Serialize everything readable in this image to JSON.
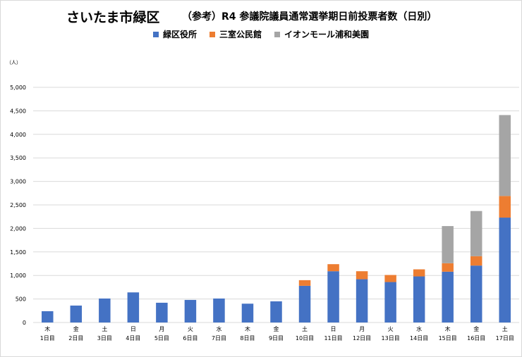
{
  "title": {
    "main": "さいたま市緑区",
    "sub": "（参考）R4 参議院議員通常選挙期日前投票者数（日別）"
  },
  "unit_label": "（人）",
  "colors": {
    "series1": "#4472c4",
    "series2": "#ed7d31",
    "series3": "#a5a5a5",
    "grid": "#d9d9d9"
  },
  "chart_data": {
    "type": "bar",
    "stacked": true,
    "title": "さいたま市緑区 （参考）R4 参議院議員通常選挙期日前投票者数（日別）",
    "ylabel": "（人）",
    "ylim": [
      0,
      5000
    ],
    "yticks": [
      "0",
      "500",
      "1,000",
      "1,500",
      "2,000",
      "2,500",
      "3,000",
      "3,500",
      "4,000",
      "4,500",
      "5,000"
    ],
    "grid": true,
    "legend_position": "top",
    "categories": [
      {
        "weekday": "木",
        "day": "1日目"
      },
      {
        "weekday": "金",
        "day": "2日目"
      },
      {
        "weekday": "土",
        "day": "3日目"
      },
      {
        "weekday": "日",
        "day": "4日目"
      },
      {
        "weekday": "月",
        "day": "5日目"
      },
      {
        "weekday": "火",
        "day": "6日目"
      },
      {
        "weekday": "水",
        "day": "7日目"
      },
      {
        "weekday": "木",
        "day": "8日目"
      },
      {
        "weekday": "金",
        "day": "9日目"
      },
      {
        "weekday": "土",
        "day": "10日目"
      },
      {
        "weekday": "日",
        "day": "11日目"
      },
      {
        "weekday": "月",
        "day": "12日目"
      },
      {
        "weekday": "火",
        "day": "13日目"
      },
      {
        "weekday": "水",
        "day": "14日目"
      },
      {
        "weekday": "木",
        "day": "15日目"
      },
      {
        "weekday": "金",
        "day": "16日目"
      },
      {
        "weekday": "土",
        "day": "17日目"
      }
    ],
    "series": [
      {
        "name": "緑区役所",
        "values": [
          240,
          360,
          510,
          640,
          420,
          480,
          510,
          400,
          450,
          780,
          1090,
          920,
          860,
          980,
          1080,
          1210,
          2230
        ]
      },
      {
        "name": "三室公民館",
        "values": [
          0,
          0,
          0,
          0,
          0,
          0,
          0,
          0,
          0,
          120,
          150,
          170,
          150,
          150,
          180,
          200,
          460
        ]
      },
      {
        "name": "イオンモール浦和美園",
        "values": [
          0,
          0,
          0,
          0,
          0,
          0,
          0,
          0,
          0,
          0,
          0,
          0,
          0,
          0,
          790,
          960,
          1720
        ]
      }
    ]
  }
}
